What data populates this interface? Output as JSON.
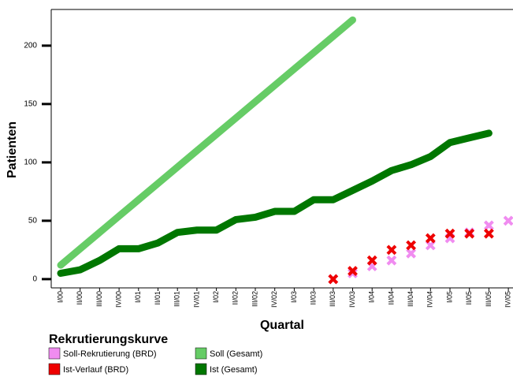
{
  "chart_data": {
    "type": "line",
    "y_label": "Patienten",
    "x_label": "Quartal",
    "legend_title": "Rekrutierungskurve",
    "categories": [
      "I/00",
      "II/00",
      "III/00",
      "IV/00",
      "I/01",
      "II/01",
      "III/01",
      "IV/01",
      "I/02",
      "II/02",
      "III/02",
      "IV/02",
      "I/03",
      "II/03",
      "III/03",
      "IV/03",
      "I/04",
      "II/04",
      "III/04",
      "IV/04",
      "I/05",
      "II/05",
      "III/05",
      "IV/05"
    ],
    "series": [
      {
        "name": "Soll-Rekrutierung (BRD)",
        "color": "#f08cf0",
        "style": "marker",
        "values": [
          null,
          null,
          null,
          null,
          null,
          null,
          null,
          null,
          null,
          null,
          null,
          null,
          null,
          null,
          0,
          5,
          11,
          16,
          22,
          29,
          35,
          40,
          46,
          50
        ]
      },
      {
        "name": "Soll (Gesamt)",
        "color": "#66cc66",
        "style": "line",
        "values": [
          12,
          26,
          40,
          54,
          68,
          82,
          96,
          110,
          124,
          138,
          152,
          166,
          180,
          194,
          208,
          222,
          null,
          null,
          null,
          null,
          null,
          null,
          null,
          null
        ]
      },
      {
        "name": "Ist-Verlauf (BRD)",
        "color": "#ee0000",
        "style": "marker",
        "values": [
          null,
          null,
          null,
          null,
          null,
          null,
          null,
          null,
          null,
          null,
          null,
          null,
          null,
          null,
          0,
          7,
          16,
          25,
          29,
          35,
          39,
          39,
          39,
          null
        ]
      },
      {
        "name": "Ist (Gesamt)",
        "color": "#007700",
        "style": "line",
        "values": [
          5,
          8,
          16,
          26,
          26,
          31,
          40,
          42,
          42,
          51,
          53,
          58,
          58,
          68,
          68,
          76,
          84,
          93,
          98,
          105,
          117,
          121,
          125,
          null
        ]
      }
    ],
    "ylim": [
      -7.5,
      231
    ],
    "yticks": [
      0,
      50,
      100,
      150,
      200
    ],
    "grid": false
  }
}
